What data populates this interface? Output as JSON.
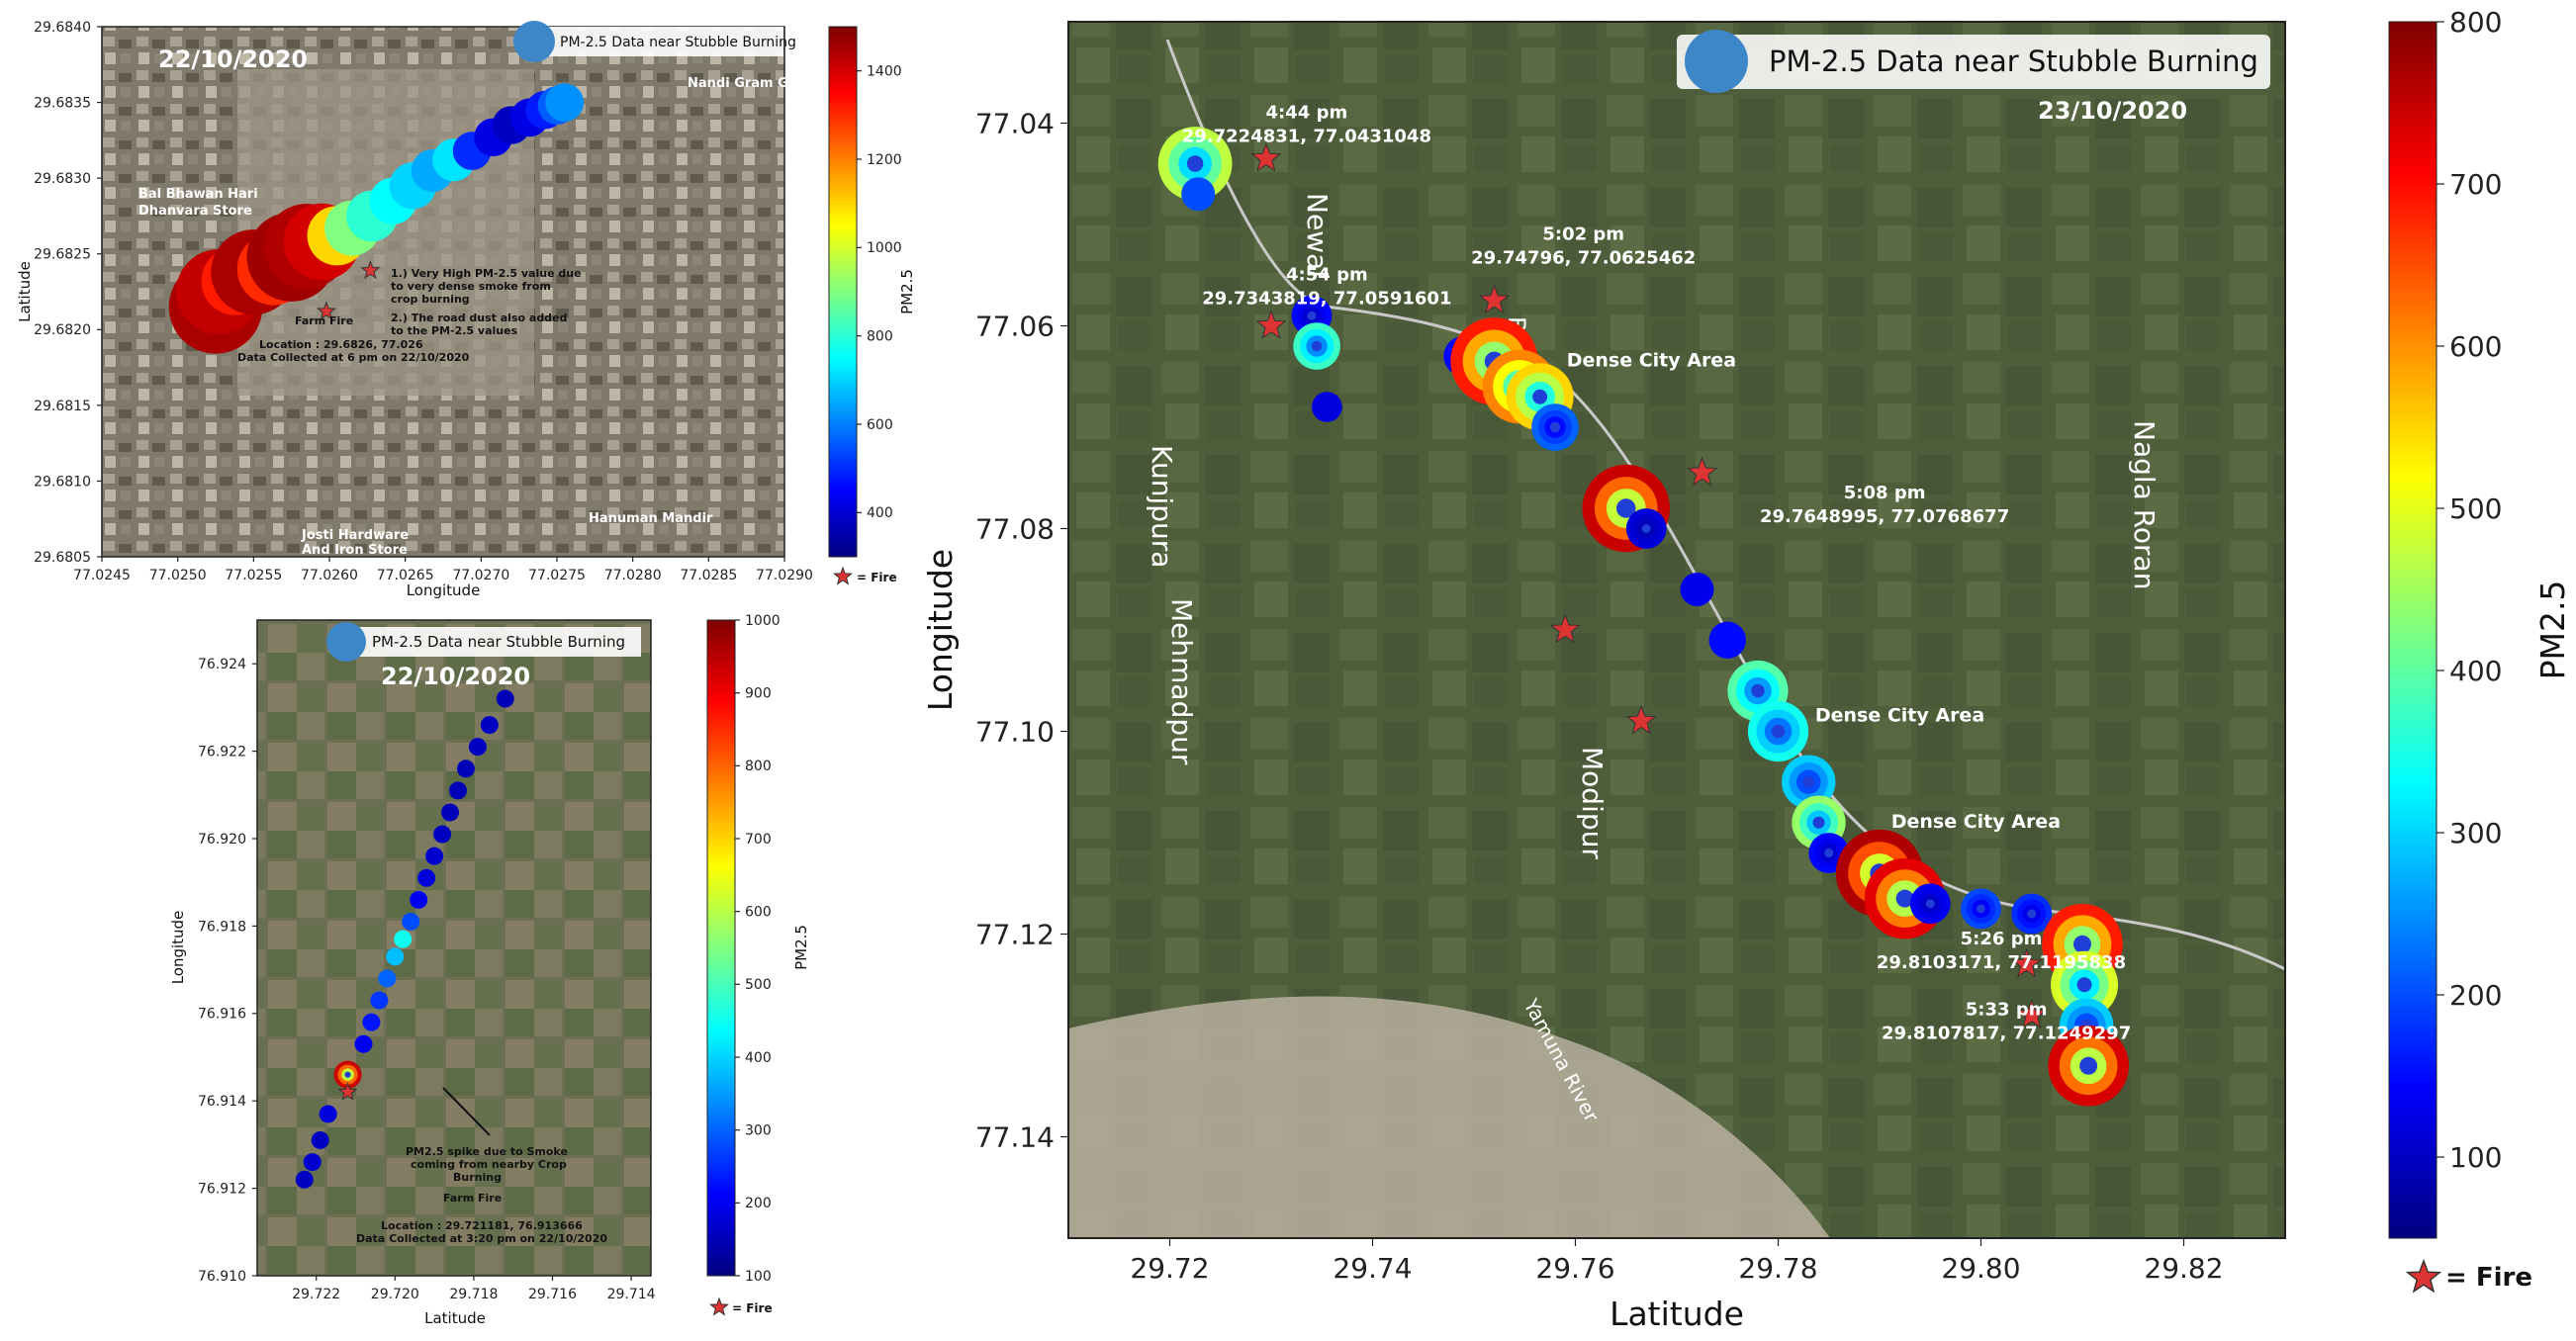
{
  "chart_data": [
    {
      "type": "scatter",
      "title": "",
      "xlabel": "Longitude",
      "ylabel": "Latitude",
      "date": "22/10/2020",
      "legend": "PM-2.5 Data near Stubble Burning",
      "legend_placement": "top-right",
      "xlim": [
        77.0245,
        77.029
      ],
      "ylim": [
        29.6805,
        29.684
      ],
      "xticks": [
        "77.0245",
        "77.0250",
        "77.0255",
        "77.0260",
        "77.0265",
        "77.0270",
        "77.0275",
        "77.0280",
        "77.0285",
        "77.0290"
      ],
      "yticks": [
        "29.6805",
        "29.6810",
        "29.6815",
        "29.6820",
        "29.6825",
        "29.6830",
        "29.6835",
        "29.6840"
      ],
      "colorbar": {
        "label": "PM2.5",
        "min": 300,
        "max": 1500,
        "ticks": [
          "400",
          "600",
          "800",
          "1000",
          "1200",
          "1400"
        ]
      },
      "fire_legend": "= Fire",
      "annotations": {
        "note1": "1.) Very High PM-2.5 value due",
        "note2": "to very dense smoke from",
        "note3": "crop burning",
        "note4": "2.) The road dust also added",
        "note5": "to the PM-2.5 values",
        "farm": "Farm Fire",
        "loc": "Location : 29.6826, 77.026",
        "collected": "Data Collected at 6 pm on 22/10/2020"
      },
      "places": [
        "Bal Bhawan Hari",
        "Dhanvara Store",
        "Nandi Gram G",
        "Hanuman Mandir",
        "Josti Hardware",
        "And Iron Store"
      ],
      "fires": [
        {
          "x": 77.02598,
          "y": 29.68212
        },
        {
          "x": 77.02627,
          "y": 29.68239
        }
      ],
      "points": [
        {
          "x": 77.02525,
          "y": 29.68215,
          "v": 1450,
          "s": 22
        },
        {
          "x": 77.02527,
          "y": 29.68225,
          "v": 1420,
          "s": 20
        },
        {
          "x": 77.02538,
          "y": 29.68232,
          "v": 1320,
          "s": 16
        },
        {
          "x": 77.0255,
          "y": 29.68238,
          "v": 1450,
          "s": 20
        },
        {
          "x": 77.02563,
          "y": 29.6824,
          "v": 1300,
          "s": 17
        },
        {
          "x": 77.02575,
          "y": 29.68248,
          "v": 1460,
          "s": 21
        },
        {
          "x": 77.02585,
          "y": 29.68255,
          "v": 1440,
          "s": 20
        },
        {
          "x": 77.02595,
          "y": 29.68258,
          "v": 1400,
          "s": 18
        },
        {
          "x": 77.02605,
          "y": 29.68262,
          "v": 1100,
          "s": 14
        },
        {
          "x": 77.02615,
          "y": 29.68267,
          "v": 900,
          "s": 13
        },
        {
          "x": 77.02628,
          "y": 29.68275,
          "v": 800,
          "s": 12
        },
        {
          "x": 77.02642,
          "y": 29.68285,
          "v": 750,
          "s": 11
        },
        {
          "x": 77.02655,
          "y": 29.68295,
          "v": 700,
          "s": 11
        },
        {
          "x": 77.02668,
          "y": 29.68305,
          "v": 650,
          "s": 10
        },
        {
          "x": 77.02682,
          "y": 29.68312,
          "v": 720,
          "s": 10
        },
        {
          "x": 77.02694,
          "y": 29.68318,
          "v": 500,
          "s": 9
        },
        {
          "x": 77.02708,
          "y": 29.68327,
          "v": 420,
          "s": 9
        },
        {
          "x": 77.0272,
          "y": 29.68335,
          "v": 380,
          "s": 9
        },
        {
          "x": 77.02732,
          "y": 29.6834,
          "v": 420,
          "s": 9
        },
        {
          "x": 77.02742,
          "y": 29.68345,
          "v": 480,
          "s": 9
        },
        {
          "x": 77.0275,
          "y": 29.68348,
          "v": 560,
          "s": 9
        },
        {
          "x": 77.02755,
          "y": 29.6835,
          "v": 620,
          "s": 9
        }
      ]
    },
    {
      "type": "scatter",
      "title": "",
      "xlabel": "Latitude",
      "ylabel": "Longitude",
      "date": "22/10/2020",
      "legend": "PM-2.5 Data near Stubble Burning",
      "legend_placement": "top-center",
      "xlim": [
        29.7235,
        29.7135
      ],
      "ylim": [
        76.91,
        76.925
      ],
      "xticks": [
        "29.722",
        "29.720",
        "29.718",
        "29.716",
        "29.714"
      ],
      "xtick_values": [
        29.722,
        29.72,
        29.718,
        29.716,
        29.714
      ],
      "yticks": [
        "76.910",
        "76.912",
        "76.914",
        "76.916",
        "76.918",
        "76.920",
        "76.922",
        "76.924"
      ],
      "colorbar": {
        "label": "PM2.5",
        "min": 100,
        "max": 1000,
        "ticks": [
          "100",
          "200",
          "300",
          "400",
          "500",
          "600",
          "700",
          "800",
          "900",
          "1000"
        ]
      },
      "fire_legend": "= Fire",
      "annotations": {
        "spike1": "PM2.5 spike due to Smoke",
        "spike2": "coming from nearby Crop",
        "spike3": "Burning",
        "farm": "Farm Fire",
        "loc": "Location : 29.721181, 76.913666",
        "collected": "Data Collected at 3:20 pm on 22/10/2020"
      },
      "fires": [
        {
          "x": 29.7212,
          "y": 76.9142
        }
      ],
      "points": [
        {
          "x": 29.7223,
          "y": 76.9122,
          "v": 160
        },
        {
          "x": 29.7221,
          "y": 76.9126,
          "v": 170
        },
        {
          "x": 29.7219,
          "y": 76.9131,
          "v": 160
        },
        {
          "x": 29.7217,
          "y": 76.9137,
          "v": 180
        },
        {
          "x": 29.7212,
          "y": 76.9146,
          "v": 950,
          "s": 14
        },
        {
          "x": 29.7208,
          "y": 76.9153,
          "v": 200
        },
        {
          "x": 29.7206,
          "y": 76.9158,
          "v": 230
        },
        {
          "x": 29.7204,
          "y": 76.9163,
          "v": 260
        },
        {
          "x": 29.7202,
          "y": 76.9168,
          "v": 300
        },
        {
          "x": 29.72,
          "y": 76.9173,
          "v": 380
        },
        {
          "x": 29.7198,
          "y": 76.9177,
          "v": 450
        },
        {
          "x": 29.7196,
          "y": 76.9181,
          "v": 280
        },
        {
          "x": 29.7194,
          "y": 76.9186,
          "v": 200
        },
        {
          "x": 29.7192,
          "y": 76.9191,
          "v": 180
        },
        {
          "x": 29.719,
          "y": 76.9196,
          "v": 170
        },
        {
          "x": 29.7188,
          "y": 76.9201,
          "v": 160
        },
        {
          "x": 29.7186,
          "y": 76.9206,
          "v": 150
        },
        {
          "x": 29.7184,
          "y": 76.9211,
          "v": 150
        },
        {
          "x": 29.7182,
          "y": 76.9216,
          "v": 150
        },
        {
          "x": 29.7179,
          "y": 76.9221,
          "v": 160
        },
        {
          "x": 29.7176,
          "y": 76.9226,
          "v": 160
        },
        {
          "x": 29.7172,
          "y": 76.9232,
          "v": 150
        }
      ]
    },
    {
      "type": "scatter",
      "title": "",
      "xlabel": "Latitude",
      "ylabel": "Longitude",
      "date": "23/10/2020",
      "legend": "PM-2.5 Data near Stubble Burning",
      "legend_placement": "top-right",
      "xlim": [
        29.71,
        29.83
      ],
      "ylim": [
        77.15,
        77.03
      ],
      "xticks": [
        "29.72",
        "29.74",
        "29.76",
        "29.78",
        "29.80",
        "29.82"
      ],
      "yticks": [
        "77.04",
        "77.06",
        "77.08",
        "77.10",
        "77.12",
        "77.14"
      ],
      "colorbar": {
        "label": "PM2.5",
        "min": 50,
        "max": 800,
        "ticks": [
          "100",
          "200",
          "300",
          "400",
          "500",
          "600",
          "700",
          "800"
        ]
      },
      "fire_legend": "= Fire",
      "places": [
        "Newal",
        "Kunjpura",
        "Mehmadpur",
        "Modipur",
        "Nagla Roran",
        "Yamuna River",
        "Bara"
      ],
      "annotations": [
        {
          "time": "4:44 pm",
          "coords": "29.7224831, 77.0431048",
          "x": 29.7335,
          "y": 77.0395
        },
        {
          "time": "4:54 pm",
          "coords": "29.7343819, 77.0591601",
          "x": 29.7355,
          "y": 77.0555
        },
        {
          "time": "5:02 pm",
          "coords": "29.74796, 77.0625462",
          "x": 29.7608,
          "y": 77.0515
        },
        {
          "time": "5:08 pm",
          "coords": "29.7648995, 77.0768677",
          "x": 29.7905,
          "y": 77.077
        },
        {
          "time": "5:26 pm",
          "coords": "29.8103171, 77.1195838",
          "x": 29.802,
          "y": 77.121
        },
        {
          "time": "5:33 pm",
          "coords": "29.8107817, 77.1249297",
          "x": 29.8025,
          "y": 77.128
        }
      ],
      "area_labels": [
        {
          "text": "Dense City Area",
          "x": 29.7675,
          "y": 77.064
        },
        {
          "text": "Dense City Area",
          "x": 29.792,
          "y": 77.099
        },
        {
          "text": "Dense City Area",
          "x": 29.7995,
          "y": 77.1095
        }
      ],
      "fires": [
        {
          "x": 29.7295,
          "y": 77.0435
        },
        {
          "x": 29.73,
          "y": 77.06
        },
        {
          "x": 29.752,
          "y": 77.0575
        },
        {
          "x": 29.7725,
          "y": 77.0745
        },
        {
          "x": 29.759,
          "y": 77.09
        },
        {
          "x": 29.7665,
          "y": 77.099
        },
        {
          "x": 29.8045,
          "y": 77.123
        },
        {
          "x": 29.805,
          "y": 77.128
        }
      ],
      "points": [
        {
          "x": 29.7225,
          "y": 77.044,
          "v": 480,
          "s": 22
        },
        {
          "x": 29.7228,
          "y": 77.047,
          "v": 200,
          "s": 10
        },
        {
          "x": 29.734,
          "y": 77.059,
          "v": 150,
          "s": 12
        },
        {
          "x": 29.7345,
          "y": 77.062,
          "v": 380,
          "s": 14
        },
        {
          "x": 29.7355,
          "y": 77.068,
          "v": 120,
          "s": 9
        },
        {
          "x": 29.749,
          "y": 77.063,
          "v": 150,
          "s": 12
        },
        {
          "x": 29.752,
          "y": 77.0635,
          "v": 700,
          "s": 26
        },
        {
          "x": 29.7545,
          "y": 77.066,
          "v": 620,
          "s": 22
        },
        {
          "x": 29.7565,
          "y": 77.067,
          "v": 560,
          "s": 20
        },
        {
          "x": 29.758,
          "y": 77.07,
          "v": 220,
          "s": 14
        },
        {
          "x": 29.765,
          "y": 77.078,
          "v": 760,
          "s": 26
        },
        {
          "x": 29.767,
          "y": 77.08,
          "v": 120,
          "s": 12
        },
        {
          "x": 29.772,
          "y": 77.086,
          "v": 130,
          "s": 10
        },
        {
          "x": 29.775,
          "y": 77.091,
          "v": 150,
          "s": 11
        },
        {
          "x": 29.778,
          "y": 77.096,
          "v": 400,
          "s": 18
        },
        {
          "x": 29.78,
          "y": 77.1,
          "v": 350,
          "s": 18
        },
        {
          "x": 29.783,
          "y": 77.105,
          "v": 300,
          "s": 16
        },
        {
          "x": 29.784,
          "y": 77.109,
          "v": 450,
          "s": 16
        },
        {
          "x": 29.785,
          "y": 77.112,
          "v": 150,
          "s": 12
        },
        {
          "x": 29.79,
          "y": 77.114,
          "v": 780,
          "s": 26
        },
        {
          "x": 29.7925,
          "y": 77.1165,
          "v": 740,
          "s": 24
        },
        {
          "x": 29.795,
          "y": 77.117,
          "v": 140,
          "s": 12
        },
        {
          "x": 29.8,
          "y": 77.1175,
          "v": 200,
          "s": 12
        },
        {
          "x": 29.805,
          "y": 77.118,
          "v": 180,
          "s": 12
        },
        {
          "x": 29.81,
          "y": 77.121,
          "v": 700,
          "s": 24
        },
        {
          "x": 29.8102,
          "y": 77.125,
          "v": 500,
          "s": 20
        },
        {
          "x": 29.8104,
          "y": 77.129,
          "v": 300,
          "s": 16
        },
        {
          "x": 29.8106,
          "y": 77.133,
          "v": 750,
          "s": 24
        }
      ]
    }
  ]
}
